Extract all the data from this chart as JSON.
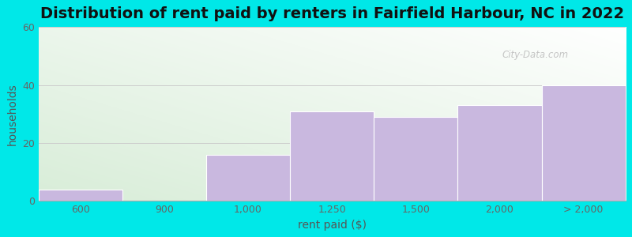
{
  "title": "Distribution of rent paid by renters in Fairfield Harbour, NC in 2022",
  "xlabel": "rent paid ($)",
  "ylabel": "households",
  "bar_labels": [
    "600",
    "900",
    "1,000",
    "1,250",
    "1,500",
    "2,000",
    "> 2,000"
  ],
  "values": [
    4,
    0,
    16,
    31,
    29,
    33,
    40
  ],
  "bar_color": "#c9b8df",
  "bar_edge_color": "#ffffff",
  "ylim": [
    0,
    60
  ],
  "yticks": [
    0,
    20,
    40,
    60
  ],
  "grid_color": "#cccccc",
  "background_outer": "#00e8e8",
  "plot_bg_green": "#ddeedd",
  "plot_bg_white": "#f8faf8",
  "title_fontsize": 14,
  "axis_label_fontsize": 10,
  "tick_fontsize": 9,
  "watermark_text": "City-Data.com",
  "watermark_color": "#bbbbbb",
  "bar_positions": [
    0,
    1,
    2,
    3,
    4,
    5,
    6
  ],
  "bar_widths": [
    1,
    0.5,
    1,
    1,
    1,
    1,
    1
  ]
}
